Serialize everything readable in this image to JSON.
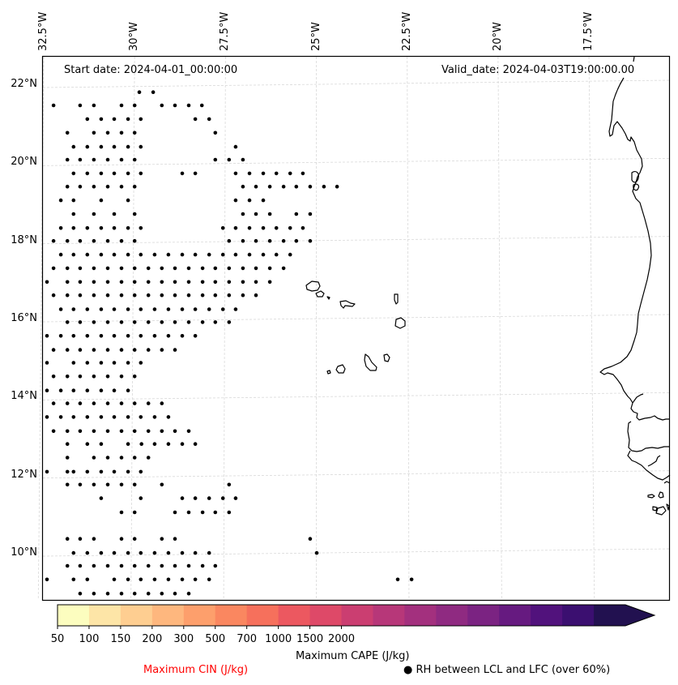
{
  "map": {
    "start_date": "Start date: 2024-04-01_00:00:00",
    "valid_date": "Valid_date: 2024-04-03T19:00:00.00",
    "lon_ticks": [
      "32.5°W",
      "30°W",
      "27.5°W",
      "25°W",
      "22.5°W",
      "20°W",
      "17.5°W"
    ],
    "lon_tick_values": [
      -32.5,
      -30,
      -27.5,
      -25,
      -22.5,
      -20,
      -17.5
    ],
    "lat_ticks": [
      "22°N",
      "20°N",
      "18°N",
      "16°N",
      "14°N",
      "12°N",
      "10°N"
    ],
    "lat_tick_values": [
      22,
      20,
      18,
      16,
      14,
      12,
      10
    ],
    "extent": {
      "lon_min": -32.58,
      "lon_max": -15.3,
      "lat_min": 8.8,
      "lat_max": 22.75
    },
    "gridline_color": "#d9d9d9",
    "coast_color": "#000000",
    "rh_dots": [
      {
        "lat": 21.82,
        "lons": [
          -29.87,
          -29.49
        ]
      },
      {
        "lat": 21.48,
        "lons": [
          -32.23,
          -31.5,
          -31.12,
          -30.36,
          -30.0,
          -29.25,
          -28.89,
          -28.51,
          -28.15
        ]
      },
      {
        "lat": 21.13,
        "lons": [
          -31.3,
          -30.92,
          -30.56,
          -30.18,
          -29.83,
          -28.33,
          -27.95
        ]
      },
      {
        "lat": 20.78,
        "lons": [
          -31.85,
          -31.12,
          -30.74,
          -30.36,
          -30.0,
          -27.78
        ]
      },
      {
        "lat": 20.42,
        "lons": [
          -31.68,
          -31.3,
          -30.92,
          -30.56,
          -30.18,
          -29.83,
          -27.22
        ]
      },
      {
        "lat": 20.09,
        "lons": [
          -31.85,
          -31.5,
          -31.12,
          -30.74,
          -30.36,
          -30.0,
          -27.78,
          -27.4,
          -27.02
        ]
      },
      {
        "lat": 19.74,
        "lons": [
          -31.68,
          -31.3,
          -30.92,
          -30.56,
          -30.18,
          -29.83,
          -28.69,
          -28.33,
          -27.22,
          -26.84,
          -26.46,
          -26.1,
          -25.72,
          -25.37
        ]
      },
      {
        "lat": 19.4,
        "lons": [
          -31.85,
          -31.5,
          -31.12,
          -30.74,
          -30.36,
          -30.0,
          -27.02,
          -26.66,
          -26.28,
          -25.9,
          -25.55,
          -25.17,
          -24.79,
          -24.43
        ]
      },
      {
        "lat": 19.05,
        "lons": [
          -32.03,
          -31.68,
          -30.92,
          -30.18,
          -27.22,
          -26.84,
          -26.46
        ]
      },
      {
        "lat": 18.7,
        "lons": [
          -31.68,
          -31.12,
          -30.56,
          -30.0,
          -27.02,
          -26.66,
          -26.28,
          -25.55,
          -25.17
        ]
      },
      {
        "lat": 18.34,
        "lons": [
          -32.03,
          -31.68,
          -31.3,
          -30.92,
          -30.56,
          -30.18,
          -29.83,
          -27.57,
          -27.22,
          -26.84,
          -26.46,
          -26.1,
          -25.72,
          -25.37
        ]
      },
      {
        "lat": 18.01,
        "lons": [
          -32.23,
          -31.85,
          -31.5,
          -31.12,
          -30.74,
          -30.36,
          -30.0,
          -27.4,
          -27.02,
          -26.66,
          -26.28,
          -25.9,
          -25.55,
          -25.17
        ]
      },
      {
        "lat": 17.66,
        "lons": [
          -32.03,
          -31.68,
          -31.3,
          -30.92,
          -30.56,
          -30.18,
          -29.83,
          -29.45,
          -29.07,
          -28.69,
          -28.33,
          -27.95,
          -27.57,
          -27.22,
          -26.84,
          -26.46,
          -26.1,
          -25.72
        ]
      },
      {
        "lat": 17.31,
        "lons": [
          -32.23,
          -31.85,
          -31.5,
          -31.12,
          -30.74,
          -30.36,
          -30.0,
          -29.62,
          -29.25,
          -28.89,
          -28.51,
          -28.13,
          -27.78,
          -27.4,
          -27.02,
          -26.66,
          -26.28,
          -25.9
        ]
      },
      {
        "lat": 16.96,
        "lons": [
          -32.41,
          -31.85,
          -31.5,
          -31.12,
          -30.74,
          -30.36,
          -30.0,
          -29.62,
          -29.25,
          -28.89,
          -28.51,
          -28.13,
          -27.78,
          -27.4,
          -27.02,
          -26.66,
          -26.28
        ]
      },
      {
        "lat": 16.62,
        "lons": [
          -32.23,
          -31.85,
          -31.5,
          -31.12,
          -30.74,
          -30.36,
          -30.0,
          -29.62,
          -29.25,
          -28.89,
          -28.51,
          -28.13,
          -27.78,
          -27.4,
          -27.02,
          -26.66
        ]
      },
      {
        "lat": 16.26,
        "lons": [
          -32.03,
          -31.68,
          -31.3,
          -30.92,
          -30.56,
          -30.18,
          -29.83,
          -29.45,
          -29.07,
          -28.69,
          -28.33,
          -27.95,
          -27.57,
          -27.22
        ]
      },
      {
        "lat": 15.93,
        "lons": [
          -31.85,
          -31.5,
          -31.12,
          -30.74,
          -30.36,
          -30.0,
          -29.62,
          -29.25,
          -28.89,
          -28.51,
          -28.13,
          -27.78,
          -27.4
        ]
      },
      {
        "lat": 15.58,
        "lons": [
          -32.41,
          -32.03,
          -31.68,
          -31.3,
          -30.92,
          -30.56,
          -30.18,
          -29.83,
          -29.45,
          -29.07,
          -28.69,
          -28.33
        ]
      },
      {
        "lat": 15.22,
        "lons": [
          -32.23,
          -31.85,
          -31.5,
          -31.12,
          -30.74,
          -30.36,
          -30.0,
          -29.62,
          -29.25,
          -28.89
        ]
      },
      {
        "lat": 14.89,
        "lons": [
          -32.41,
          -31.68,
          -31.3,
          -30.92,
          -30.56,
          -30.18,
          -29.83
        ]
      },
      {
        "lat": 14.54,
        "lons": [
          -32.23,
          -31.85,
          -31.5,
          -31.12,
          -30.74,
          -30.36,
          -30.0
        ]
      },
      {
        "lat": 14.18,
        "lons": [
          -32.41,
          -32.03,
          -31.68,
          -31.3,
          -30.92,
          -30.56,
          -30.18
        ]
      },
      {
        "lat": 13.85,
        "lons": [
          -32.23,
          -31.85,
          -31.5,
          -31.12,
          -30.74,
          -30.36,
          -30.0,
          -29.62,
          -29.25
        ]
      },
      {
        "lat": 13.5,
        "lons": [
          -32.41,
          -32.03,
          -31.68,
          -31.3,
          -30.92,
          -30.56,
          -30.18,
          -29.83,
          -29.45,
          -29.07
        ]
      },
      {
        "lat": 13.14,
        "lons": [
          -32.23,
          -31.85,
          -31.5,
          -31.12,
          -30.74,
          -30.36,
          -30.0,
          -29.62,
          -29.25,
          -28.89,
          -28.51
        ]
      },
      {
        "lat": 12.81,
        "lons": [
          -31.85,
          -31.3,
          -30.92,
          -30.18,
          -29.81,
          -29.45,
          -29.07,
          -28.69,
          -28.33
        ]
      },
      {
        "lat": 12.46,
        "lons": [
          -31.85,
          -31.12,
          -30.74,
          -30.36,
          -30.0,
          -29.62
        ]
      },
      {
        "lat": 12.1,
        "lons": [
          -32.41,
          -31.85,
          -31.68,
          -31.3,
          -30.92,
          -30.56,
          -30.18,
          -29.83
        ]
      },
      {
        "lat": 11.77,
        "lons": [
          -31.85,
          -31.5,
          -31.12,
          -30.74,
          -30.36,
          -30.0,
          -29.25,
          -27.4
        ]
      },
      {
        "lat": 11.42,
        "lons": [
          -30.92,
          -29.83,
          -28.69,
          -28.33,
          -27.95,
          -27.57,
          -27.22
        ]
      },
      {
        "lat": 11.06,
        "lons": [
          -30.36,
          -30.0,
          -28.89,
          -28.51,
          -28.13,
          -27.78,
          -27.4
        ]
      },
      {
        "lat": 10.38,
        "lons": [
          -31.85,
          -31.5,
          -31.12,
          -30.36,
          -30.0,
          -29.25,
          -28.89,
          -25.17
        ]
      },
      {
        "lat": 10.02,
        "lons": [
          -31.68,
          -31.3,
          -30.92,
          -30.56,
          -30.18,
          -29.83,
          -29.45,
          -29.07,
          -28.69,
          -28.33,
          -27.95,
          -24.99
        ]
      },
      {
        "lat": 9.69,
        "lons": [
          -31.85,
          -31.5,
          -31.12,
          -30.74,
          -30.36,
          -30.0,
          -29.62,
          -29.25,
          -28.89,
          -28.51,
          -28.13,
          -27.78
        ]
      },
      {
        "lat": 9.34,
        "lons": [
          -32.41,
          -31.68,
          -31.3,
          -30.56,
          -30.18,
          -29.83,
          -29.45,
          -29.07,
          -28.69,
          -28.33,
          -27.95,
          -22.76,
          -22.38
        ]
      },
      {
        "lat": 8.98,
        "lons": [
          -31.5,
          -31.12,
          -30.74,
          -30.36,
          -30.0,
          -29.62,
          -29.25,
          -28.89,
          -28.51
        ]
      }
    ]
  },
  "colorbar": {
    "colors": [
      "#fcfdbf",
      "#fde5a7",
      "#fece91",
      "#feb77e",
      "#fd9f6c",
      "#fa8760",
      "#f6705c",
      "#ec5860",
      "#de4968",
      "#cb3e71",
      "#b73779",
      "#a3307e",
      "#8f2a81",
      "#7b2382",
      "#661a80",
      "#51127c",
      "#3b0f70",
      "#221150"
    ],
    "extend_color": "#221150",
    "tick_labels": [
      "50",
      "100",
      "150",
      "200",
      "300",
      "500",
      "700",
      "1000",
      "1500",
      "2000"
    ],
    "tick_bin_index": [
      0,
      2,
      4,
      6,
      8,
      10,
      12,
      14,
      16,
      18
    ],
    "label": "Maximum CAPE (J/kg)"
  },
  "legend": {
    "cin_label": "Maximum CIN (J/kg)",
    "cin_color": "#ff0000",
    "rh_symbol": "●",
    "rh_label": "RH between LCL and LFC (over 60%)"
  }
}
